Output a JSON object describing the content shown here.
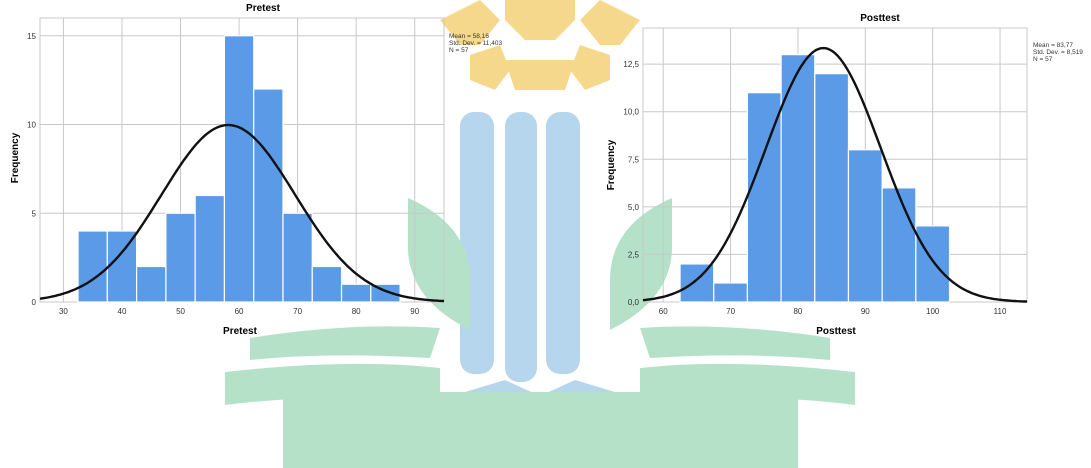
{
  "colors": {
    "bar_fill": "#5b9ae6",
    "bar_stroke": "#ffffff",
    "curve": "#111111",
    "grid": "#c8c8c8",
    "axis": "#555555",
    "watermark_gold": "#f5d27a",
    "watermark_blue": "#a9cfe9",
    "watermark_green": "#a9dcc0"
  },
  "watermark": {
    "description_icon": "university-logo-watermark"
  },
  "chart_data": [
    {
      "type": "bar",
      "title": "Pretest",
      "xlabel": "Pretest",
      "ylabel": "Frequency",
      "bin_edges": [
        32.5,
        37.5,
        42.5,
        47.5,
        52.5,
        57.5,
        62.5,
        67.5,
        72.5,
        77.5,
        82.5,
        87.5
      ],
      "values": [
        4,
        4,
        2,
        5,
        6,
        15,
        12,
        5,
        2,
        1,
        1
      ],
      "xlim": [
        26,
        95
      ],
      "ylim": [
        0,
        16
      ],
      "x_ticks": [
        30,
        40,
        50,
        60,
        70,
        80,
        90
      ],
      "x_tick_labels": [
        "30",
        "40",
        "50",
        "60",
        "70",
        "80",
        "90"
      ],
      "y_ticks": [
        0,
        5,
        10,
        15
      ],
      "y_tick_labels": [
        "0",
        "5",
        "10",
        "15"
      ],
      "normal_curve": {
        "mean": 58.16,
        "sd": 11.403,
        "n": 57,
        "bin_width": 5
      },
      "stats": [
        "Mean = 58,16",
        "Std. Dev. = 11,403",
        "N = 57"
      ],
      "grid": true
    },
    {
      "type": "bar",
      "title": "Posttest",
      "xlabel": "Posttest",
      "ylabel": "Frequency",
      "bin_edges": [
        62.5,
        67.5,
        72.5,
        77.5,
        82.5,
        87.5,
        92.5,
        97.5,
        102.5
      ],
      "values": [
        2,
        1,
        11,
        13,
        12,
        8,
        6,
        4
      ],
      "xlim": [
        57,
        114
      ],
      "ylim": [
        0,
        14.4
      ],
      "x_ticks": [
        60,
        70,
        80,
        90,
        100,
        110
      ],
      "x_tick_labels": [
        "60",
        "70",
        "80",
        "90",
        "100",
        "110"
      ],
      "y_ticks": [
        0,
        2.5,
        5,
        7.5,
        10,
        12.5
      ],
      "y_tick_labels": [
        "0,0",
        "2,5",
        "5,0",
        "7,5",
        "10,0",
        "12,5"
      ],
      "normal_curve": {
        "mean": 83.77,
        "sd": 8.519,
        "n": 57,
        "bin_width": 5
      },
      "stats": [
        "Mean = 83,77",
        "Std. Dev. = 8,519",
        "N = 57"
      ],
      "grid": true
    }
  ]
}
